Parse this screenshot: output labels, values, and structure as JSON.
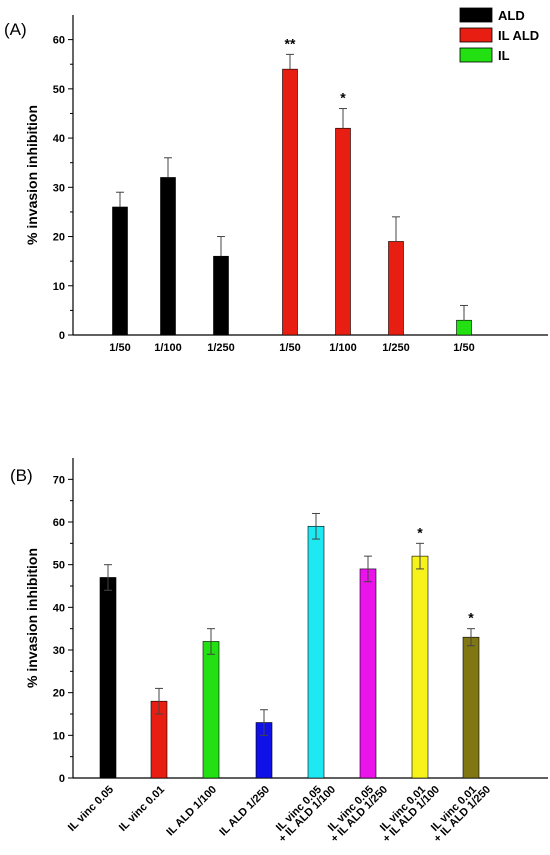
{
  "panels": {
    "a": {
      "label": "(A)"
    },
    "b": {
      "label": "(B)"
    }
  },
  "chart_data": [
    {
      "type": "bar",
      "panel": "(A)",
      "ylabel": "% invasion inhibition",
      "xlabel": "",
      "ylim": [
        0,
        65
      ],
      "yticks": [
        0,
        10,
        20,
        30,
        40,
        50,
        60
      ],
      "legend_position": "top-right",
      "legend": [
        {
          "name": "ALD",
          "color": "#000000"
        },
        {
          "name": "IL ALD",
          "color": "#e81e12"
        },
        {
          "name": "IL",
          "color": "#22e012"
        }
      ],
      "bars": [
        {
          "category": "1/50",
          "group": "ALD",
          "value": 26,
          "error": 3,
          "color": "#000000",
          "annotation": ""
        },
        {
          "category": "1/100",
          "group": "ALD",
          "value": 32,
          "error": 4,
          "color": "#000000",
          "annotation": ""
        },
        {
          "category": "1/250",
          "group": "ALD",
          "value": 16,
          "error": 4,
          "color": "#000000",
          "annotation": ""
        },
        {
          "category": "1/50",
          "group": "IL ALD",
          "value": 54,
          "error": 3,
          "color": "#e81e12",
          "annotation": "**"
        },
        {
          "category": "1/100",
          "group": "IL ALD",
          "value": 42,
          "error": 4,
          "color": "#e81e12",
          "annotation": "*"
        },
        {
          "category": "1/250",
          "group": "IL ALD",
          "value": 19,
          "error": 5,
          "color": "#e81e12",
          "annotation": ""
        },
        {
          "category": "1/50",
          "group": "IL",
          "value": 3,
          "error": 3,
          "color": "#22e012",
          "annotation": ""
        }
      ]
    },
    {
      "type": "bar",
      "panel": "(B)",
      "ylabel": "% invasion inhibition",
      "xlabel": "",
      "ylim": [
        0,
        75
      ],
      "yticks": [
        0,
        10,
        20,
        30,
        40,
        50,
        60,
        70
      ],
      "bars": [
        {
          "category": [
            "IL vinc 0.05"
          ],
          "value": 47,
          "error": 3,
          "color": "#000000",
          "annotation": ""
        },
        {
          "category": [
            "IL vinc 0.01"
          ],
          "value": 18,
          "error": 3,
          "color": "#e81e12",
          "annotation": ""
        },
        {
          "category": [
            "IL ALD 1/100"
          ],
          "value": 32,
          "error": 3,
          "color": "#22e012",
          "annotation": ""
        },
        {
          "category": [
            "IL ALD 1/250"
          ],
          "value": 13,
          "error": 3,
          "color": "#1010e8",
          "annotation": ""
        },
        {
          "category": [
            "IL vinc 0.05",
            "+ IL ALD 1/100"
          ],
          "value": 59,
          "error": 3,
          "color": "#1ee8f2",
          "annotation": ""
        },
        {
          "category": [
            "IL vinc 0.05",
            "+ IL ALD 1/250"
          ],
          "value": 49,
          "error": 3,
          "color": "#ea14ea",
          "annotation": ""
        },
        {
          "category": [
            "IL vinc 0.01",
            "+ IL ALD 1/100"
          ],
          "value": 52,
          "error": 3,
          "color": "#f6f21a",
          "annotation": "*"
        },
        {
          "category": [
            "IL vinc 0.01",
            "+ IL ALD 1/250"
          ],
          "value": 33,
          "error": 2,
          "color": "#807612",
          "annotation": "*"
        }
      ]
    }
  ]
}
